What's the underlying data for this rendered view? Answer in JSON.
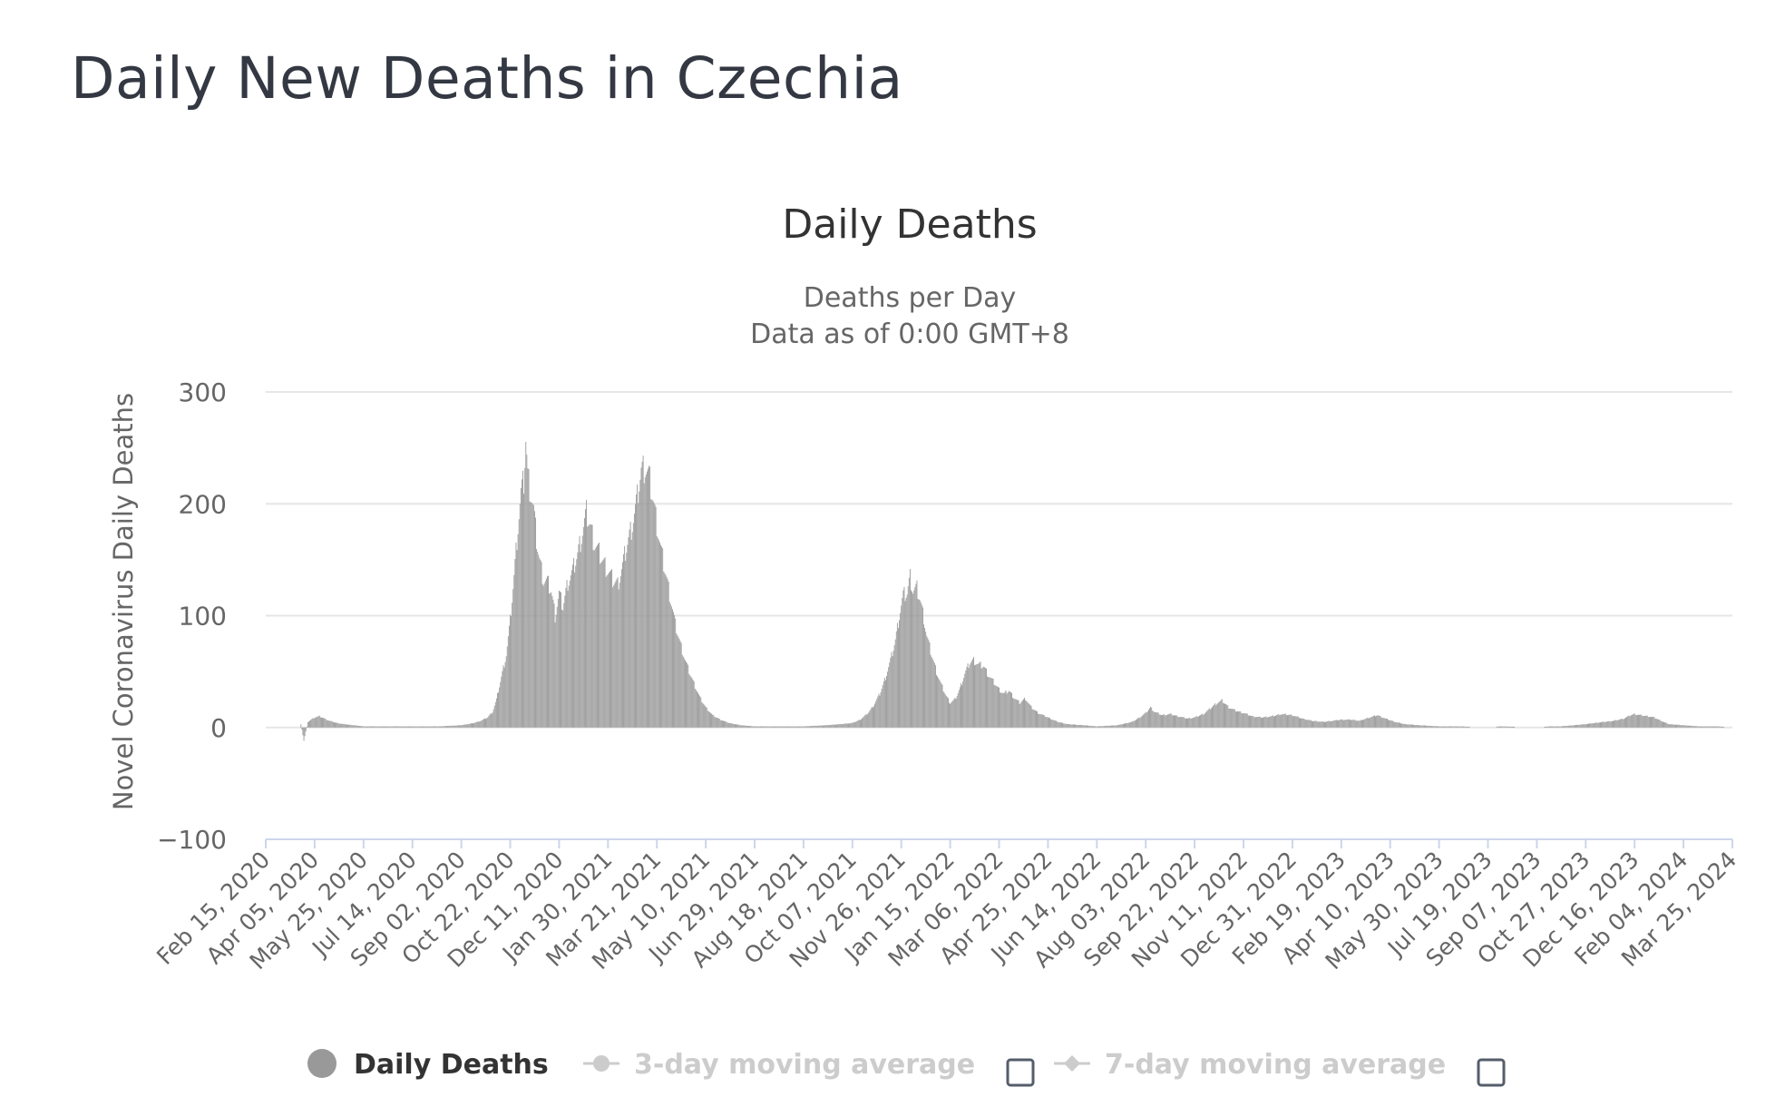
{
  "page": {
    "title": "Daily New Deaths in Czechia"
  },
  "chart_data": {
    "type": "bar",
    "title": "Daily Deaths",
    "subtitle_lines": [
      "Deaths per Day",
      "Data as of 0:00 GMT+8"
    ],
    "xlabel": "",
    "ylabel": "Novel Coronavirus Daily Deaths",
    "ylim": [
      -100,
      300
    ],
    "y_ticks": [
      -100,
      0,
      100,
      200,
      300
    ],
    "x_range": [
      "2020-02-15",
      "2024-03-25"
    ],
    "x_tick_labels": [
      "Feb 15, 2020",
      "Apr 05, 2020",
      "May 25, 2020",
      "Jul 14, 2020",
      "Sep 02, 2020",
      "Oct 22, 2020",
      "Dec 11, 2020",
      "Jan 30, 2021",
      "Mar 21, 2021",
      "May 10, 2021",
      "Jun 29, 2021",
      "Aug 18, 2021",
      "Oct 07, 2021",
      "Nov 26, 2021",
      "Jan 15, 2022",
      "Mar 06, 2022",
      "Apr 25, 2022",
      "Jun 14, 2022",
      "Aug 03, 2022",
      "Sep 22, 2022",
      "Nov 11, 2022",
      "Dec 31, 2022",
      "Feb 19, 2023",
      "Apr 10, 2023",
      "May 30, 2023",
      "Jul 19, 2023",
      "Sep 07, 2023",
      "Oct 27, 2023",
      "Dec 16, 2023",
      "Feb 04, 2024",
      "Mar 25, 2024"
    ],
    "grid": true,
    "legend_position": "bottom",
    "series": [
      {
        "name": "Daily Deaths",
        "color": "#999999",
        "active": true,
        "points": [
          [
            "2020-03-22",
            3
          ],
          [
            "2020-03-25",
            -12
          ],
          [
            "2020-03-29",
            5
          ],
          [
            "2020-04-05",
            9
          ],
          [
            "2020-04-10",
            10
          ],
          [
            "2020-04-15",
            8
          ],
          [
            "2020-04-20",
            6
          ],
          [
            "2020-04-28",
            4
          ],
          [
            "2020-05-05",
            3
          ],
          [
            "2020-05-15",
            2
          ],
          [
            "2020-05-25",
            1
          ],
          [
            "2020-06-15",
            1
          ],
          [
            "2020-07-14",
            1
          ],
          [
            "2020-08-10",
            1
          ],
          [
            "2020-09-02",
            2
          ],
          [
            "2020-09-15",
            4
          ],
          [
            "2020-09-22",
            6
          ],
          [
            "2020-09-29",
            9
          ],
          [
            "2020-10-04",
            14
          ],
          [
            "2020-10-08",
            25
          ],
          [
            "2020-10-13",
            45
          ],
          [
            "2020-10-18",
            65
          ],
          [
            "2020-10-22",
            95
          ],
          [
            "2020-10-26",
            135
          ],
          [
            "2020-10-30",
            180
          ],
          [
            "2020-11-02",
            210
          ],
          [
            "2020-11-05",
            220
          ],
          [
            "2020-11-07",
            258
          ],
          [
            "2020-11-09",
            225
          ],
          [
            "2020-11-12",
            210
          ],
          [
            "2020-11-15",
            195
          ],
          [
            "2020-11-18",
            168
          ],
          [
            "2020-11-21",
            150
          ],
          [
            "2020-11-25",
            132
          ],
          [
            "2020-11-29",
            130
          ],
          [
            "2020-12-03",
            122
          ],
          [
            "2020-12-07",
            100
          ],
          [
            "2020-12-11",
            120
          ],
          [
            "2020-12-15",
            108
          ],
          [
            "2020-12-20",
            130
          ],
          [
            "2020-12-25",
            140
          ],
          [
            "2020-12-30",
            155
          ],
          [
            "2021-01-04",
            175
          ],
          [
            "2021-01-08",
            192
          ],
          [
            "2021-01-12",
            180
          ],
          [
            "2021-01-16",
            165
          ],
          [
            "2021-01-20",
            158
          ],
          [
            "2021-01-24",
            150
          ],
          [
            "2021-01-30",
            140
          ],
          [
            "2021-02-04",
            132
          ],
          [
            "2021-02-09",
            128
          ],
          [
            "2021-02-14",
            145
          ],
          [
            "2021-02-19",
            165
          ],
          [
            "2021-02-24",
            182
          ],
          [
            "2021-03-01",
            205
          ],
          [
            "2021-03-05",
            230
          ],
          [
            "2021-03-09",
            233
          ],
          [
            "2021-03-13",
            225
          ],
          [
            "2021-03-17",
            205
          ],
          [
            "2021-03-21",
            182
          ],
          [
            "2021-03-25",
            160
          ],
          [
            "2021-03-30",
            138
          ],
          [
            "2021-04-04",
            115
          ],
          [
            "2021-04-09",
            92
          ],
          [
            "2021-04-14",
            75
          ],
          [
            "2021-04-19",
            60
          ],
          [
            "2021-04-24",
            48
          ],
          [
            "2021-04-29",
            37
          ],
          [
            "2021-05-04",
            27
          ],
          [
            "2021-05-10",
            18
          ],
          [
            "2021-05-17",
            11
          ],
          [
            "2021-05-25",
            7
          ],
          [
            "2021-06-03",
            4
          ],
          [
            "2021-06-15",
            2
          ],
          [
            "2021-06-29",
            1
          ],
          [
            "2021-07-20",
            1
          ],
          [
            "2021-08-18",
            1
          ],
          [
            "2021-09-10",
            2
          ],
          [
            "2021-09-25",
            3
          ],
          [
            "2021-10-07",
            4
          ],
          [
            "2021-10-15",
            7
          ],
          [
            "2021-10-22",
            12
          ],
          [
            "2021-10-29",
            20
          ],
          [
            "2021-11-04",
            30
          ],
          [
            "2021-11-10",
            45
          ],
          [
            "2021-11-15",
            60
          ],
          [
            "2021-11-20",
            78
          ],
          [
            "2021-11-24",
            100
          ],
          [
            "2021-11-28",
            118
          ],
          [
            "2021-12-02",
            120
          ],
          [
            "2021-12-05",
            135
          ],
          [
            "2021-12-08",
            122
          ],
          [
            "2021-12-12",
            124
          ],
          [
            "2021-12-15",
            115
          ],
          [
            "2021-12-19",
            98
          ],
          [
            "2021-12-22",
            82
          ],
          [
            "2021-12-27",
            65
          ],
          [
            "2022-01-01",
            50
          ],
          [
            "2022-01-06",
            38
          ],
          [
            "2022-01-11",
            28
          ],
          [
            "2022-01-15",
            22
          ],
          [
            "2022-01-20",
            25
          ],
          [
            "2022-01-25",
            35
          ],
          [
            "2022-01-30",
            48
          ],
          [
            "2022-02-04",
            58
          ],
          [
            "2022-02-08",
            60
          ],
          [
            "2022-02-13",
            56
          ],
          [
            "2022-02-18",
            55
          ],
          [
            "2022-02-23",
            47
          ],
          [
            "2022-03-01",
            40
          ],
          [
            "2022-03-06",
            34
          ],
          [
            "2022-03-11",
            30
          ],
          [
            "2022-03-16",
            33
          ],
          [
            "2022-03-21",
            27
          ],
          [
            "2022-03-27",
            22
          ],
          [
            "2022-04-02",
            26
          ],
          [
            "2022-04-08",
            18
          ],
          [
            "2022-04-15",
            13
          ],
          [
            "2022-04-25",
            9
          ],
          [
            "2022-05-05",
            5
          ],
          [
            "2022-05-15",
            3
          ],
          [
            "2022-06-01",
            2
          ],
          [
            "2022-06-14",
            1
          ],
          [
            "2022-07-05",
            2
          ],
          [
            "2022-07-20",
            5
          ],
          [
            "2022-07-28",
            9
          ],
          [
            "2022-08-03",
            13
          ],
          [
            "2022-08-08",
            18
          ],
          [
            "2022-08-12",
            14
          ],
          [
            "2022-08-20",
            11
          ],
          [
            "2022-08-28",
            12
          ],
          [
            "2022-09-05",
            10
          ],
          [
            "2022-09-15",
            8
          ],
          [
            "2022-09-22",
            9
          ],
          [
            "2022-10-01",
            12
          ],
          [
            "2022-10-08",
            17
          ],
          [
            "2022-10-15",
            22
          ],
          [
            "2022-10-20",
            24
          ],
          [
            "2022-10-27",
            18
          ],
          [
            "2022-11-03",
            15
          ],
          [
            "2022-11-11",
            13
          ],
          [
            "2022-11-20",
            10
          ],
          [
            "2022-11-30",
            9
          ],
          [
            "2022-12-10",
            10
          ],
          [
            "2022-12-20",
            12
          ],
          [
            "2022-12-31",
            11
          ],
          [
            "2023-01-10",
            8
          ],
          [
            "2023-01-20",
            6
          ],
          [
            "2023-02-01",
            5
          ],
          [
            "2023-02-10",
            6
          ],
          [
            "2023-02-19",
            7
          ],
          [
            "2023-03-01",
            7
          ],
          [
            "2023-03-10",
            6
          ],
          [
            "2023-03-20",
            9
          ],
          [
            "2023-03-28",
            11
          ],
          [
            "2023-04-05",
            8
          ],
          [
            "2023-04-15",
            5
          ],
          [
            "2023-04-25",
            3
          ],
          [
            "2023-05-10",
            2
          ],
          [
            "2023-05-30",
            1
          ],
          [
            "2023-06-20",
            1
          ],
          [
            "2023-07-19",
            0
          ],
          [
            "2023-08-01",
            1
          ],
          [
            "2023-09-07",
            0
          ],
          [
            "2023-09-20",
            1
          ],
          [
            "2023-10-01",
            1
          ],
          [
            "2023-10-15",
            2
          ],
          [
            "2023-10-27",
            3
          ],
          [
            "2023-11-05",
            4
          ],
          [
            "2023-11-15",
            5
          ],
          [
            "2023-11-25",
            6
          ],
          [
            "2023-12-05",
            8
          ],
          [
            "2023-12-12",
            11
          ],
          [
            "2023-12-16",
            12
          ],
          [
            "2023-12-22",
            11
          ],
          [
            "2023-12-30",
            10
          ],
          [
            "2024-01-05",
            9
          ],
          [
            "2024-01-12",
            6
          ],
          [
            "2024-01-20",
            3
          ],
          [
            "2024-02-04",
            2
          ],
          [
            "2024-02-20",
            1
          ],
          [
            "2024-03-10",
            1
          ],
          [
            "2024-03-25",
            0
          ]
        ]
      },
      {
        "name": "3-day moving average",
        "color": "#cccccc",
        "active": false
      },
      {
        "name": "7-day moving average",
        "color": "#cccccc",
        "active": false
      }
    ]
  }
}
